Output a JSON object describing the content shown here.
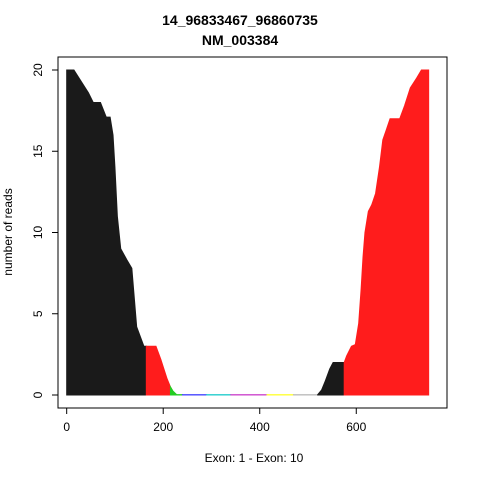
{
  "chart_data": {
    "type": "area",
    "title": "14_96833467_96860735",
    "subtitle": "NM_003384",
    "xlabel": "Exon: 1 - Exon: 10",
    "ylabel": "number of reads",
    "xlim": [
      -18,
      788
    ],
    "ylim": [
      -0.8,
      20.8
    ],
    "xticks": [
      0,
      200,
      400,
      600
    ],
    "yticks": [
      0,
      5,
      10,
      15,
      20
    ],
    "grid": false,
    "series": [
      {
        "color": "#1a1a1a",
        "points": [
          [
            0,
            20
          ],
          [
            15,
            20
          ],
          [
            30,
            19.3
          ],
          [
            45,
            18.6
          ],
          [
            55,
            18
          ],
          [
            70,
            18
          ],
          [
            82,
            17.1
          ],
          [
            90,
            17.1
          ],
          [
            96,
            16
          ],
          [
            100,
            14
          ],
          [
            105,
            11
          ],
          [
            112,
            9
          ],
          [
            125,
            8.3
          ],
          [
            135,
            7.8
          ],
          [
            145,
            4.2
          ],
          [
            160,
            3
          ],
          [
            165,
            3
          ]
        ]
      },
      {
        "color": "#ff1c1c",
        "points": [
          [
            165,
            3
          ],
          [
            170,
            3
          ],
          [
            185,
            3
          ],
          [
            195,
            2.2
          ],
          [
            208,
            1
          ],
          [
            215,
            0.5
          ],
          [
            222,
            0.1
          ]
        ]
      },
      {
        "color": "#22cc22",
        "points": [
          [
            215,
            0.5
          ],
          [
            220,
            0.25
          ],
          [
            228,
            0.02
          ],
          [
            240,
            0.02
          ]
        ]
      },
      {
        "color": "#4444ff",
        "points": [
          [
            240,
            0.02
          ],
          [
            290,
            0.02
          ]
        ]
      },
      {
        "color": "#22cccc",
        "points": [
          [
            290,
            0.02
          ],
          [
            340,
            0.02
          ]
        ]
      },
      {
        "color": "#cc44cc",
        "points": [
          [
            340,
            0.02
          ],
          [
            415,
            0.02
          ]
        ]
      },
      {
        "color": "#ffff33",
        "points": [
          [
            415,
            0.02
          ],
          [
            470,
            0.02
          ]
        ]
      },
      {
        "color": "#bbbbbb",
        "points": [
          [
            470,
            0.02
          ],
          [
            520,
            0.02
          ]
        ]
      },
      {
        "color": "#1a1a1a",
        "points": [
          [
            520,
            0.02
          ],
          [
            528,
            0.3
          ],
          [
            535,
            0.8
          ],
          [
            545,
            1.6
          ],
          [
            552,
            2
          ],
          [
            575,
            2
          ]
        ]
      },
      {
        "color": "#ff1c1c",
        "points": [
          [
            575,
            2
          ],
          [
            580,
            2.4
          ],
          [
            590,
            3
          ],
          [
            598,
            3.1
          ],
          [
            605,
            4.4
          ],
          [
            610,
            6.5
          ],
          [
            614,
            8.5
          ],
          [
            618,
            10
          ],
          [
            625,
            11.3
          ],
          [
            632,
            11.7
          ],
          [
            640,
            12.4
          ],
          [
            648,
            14
          ],
          [
            655,
            15.7
          ],
          [
            662,
            16.3
          ],
          [
            670,
            17
          ],
          [
            690,
            17
          ],
          [
            700,
            17.8
          ],
          [
            712,
            18.9
          ],
          [
            725,
            19.5
          ],
          [
            735,
            20
          ],
          [
            750,
            20
          ]
        ]
      }
    ]
  }
}
